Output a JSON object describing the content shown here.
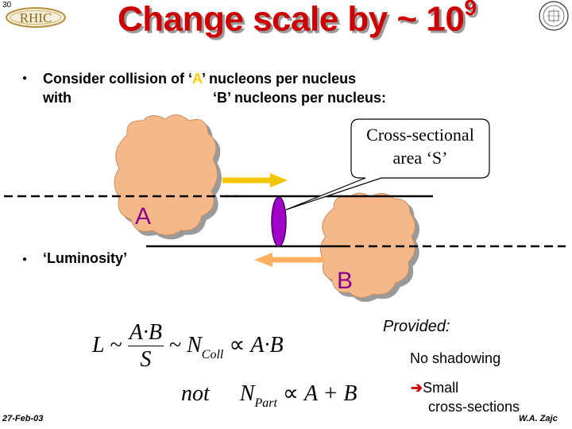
{
  "slide_number": "30",
  "logo_text": "RHIC",
  "title": {
    "base": "Change scale by ~ 10",
    "exponent": "9"
  },
  "bullets": {
    "line1": {
      "pre": "Consider collision of ‘",
      "accent": "A",
      "post": "’ nucleons per nucleus"
    },
    "line2": {
      "left": "with",
      "right": "‘B’ nucleons per nucleus:"
    },
    "luminosity": "‘Luminosity’"
  },
  "callout": {
    "line1": "Cross-sectional",
    "line2": "area ‘S’"
  },
  "labels": {
    "a": "A",
    "b": "B"
  },
  "formula1": {
    "lhs": "L",
    "sim": "~",
    "num": "A·B",
    "den": "S",
    "sim2": "~",
    "n": "N",
    "sub": "Coll",
    "prop": "∝",
    "rhs": "A·B"
  },
  "formula2": {
    "not": "not",
    "n": "N",
    "sub": "Part",
    "prop": "∝",
    "rhs": "A + B"
  },
  "provided": {
    "title": "Provided:",
    "item1": "No shadowing",
    "arrow": "➔",
    "item2a": "Small",
    "item2b": "cross-sections"
  },
  "footer": {
    "date": "27-Feb-03",
    "author": "W.A. Zajc"
  },
  "colors": {
    "title": "#cc0000",
    "accent": "#ffcc00",
    "cloud": "#f5b88a",
    "ellipse": "#a000c8",
    "arrow": "#f3c400",
    "arrow2": "#ffb060",
    "label": "#8b008b"
  },
  "icons": {
    "bullet": "bullet-dot-icon",
    "arrow": "arrow-right-icon"
  }
}
